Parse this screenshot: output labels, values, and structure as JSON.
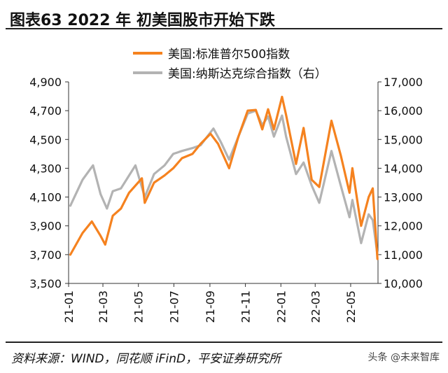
{
  "header": {
    "title": "图表63    2022 年 初美国股市开始下跌"
  },
  "footer": {
    "source": "资料来源：WIND，同花顺 iFinD，平安证券研究所",
    "watermark": "头条 @未来智库"
  },
  "colors": {
    "sp500": "#F5821F",
    "nasdaq": "#B3B3B3",
    "axis": "#333333"
  },
  "chart_data": {
    "type": "line",
    "x_ticks": [
      "21-01",
      "21-03",
      "21-05",
      "21-07",
      "21-09",
      "21-11",
      "22-01",
      "22-03",
      "22-05"
    ],
    "y_left": {
      "ticks": [
        "3,500",
        "3,700",
        "3,900",
        "4,100",
        "4,300",
        "4,500",
        "4,700",
        "4,900"
      ],
      "range": [
        3500,
        4900
      ]
    },
    "y_right": {
      "ticks": [
        "10,000",
        "11,000",
        "12,000",
        "13,000",
        "14,000",
        "15,000",
        "16,000",
        "17,000"
      ],
      "range": [
        10000,
        17000
      ]
    },
    "series": [
      {
        "name": "美国:标准普尔500指数",
        "axis": "left",
        "x": [
          "2021-01-04",
          "2021-01-25",
          "2021-02-10",
          "2021-02-25",
          "2021-03-05",
          "2021-03-18",
          "2021-04-01",
          "2021-04-15",
          "2021-05-07",
          "2021-05-12",
          "2021-05-28",
          "2021-06-15",
          "2021-06-30",
          "2021-07-15",
          "2021-08-02",
          "2021-08-16",
          "2021-09-02",
          "2021-09-15",
          "2021-10-04",
          "2021-10-20",
          "2021-11-05",
          "2021-11-19",
          "2021-11-30",
          "2021-12-10",
          "2021-12-20",
          "2022-01-03",
          "2022-01-10",
          "2022-01-27",
          "2022-02-09",
          "2022-02-23",
          "2022-03-08",
          "2022-03-29",
          "2022-04-14",
          "2022-04-29",
          "2022-05-04",
          "2022-05-19",
          "2022-06-01",
          "2022-06-08",
          "2022-06-16"
        ],
        "y": [
          3700,
          3850,
          3930,
          3830,
          3770,
          3970,
          4020,
          4130,
          4230,
          4060,
          4200,
          4250,
          4300,
          4370,
          4400,
          4470,
          4540,
          4470,
          4300,
          4520,
          4700,
          4705,
          4570,
          4710,
          4570,
          4796,
          4670,
          4330,
          4580,
          4220,
          4170,
          4630,
          4390,
          4130,
          4300,
          3900,
          4100,
          4160,
          3670
        ]
      },
      {
        "name": "美国:纳斯达克综合指数（右）",
        "axis": "right",
        "x": [
          "2021-01-04",
          "2021-01-25",
          "2021-02-12",
          "2021-02-25",
          "2021-03-08",
          "2021-03-18",
          "2021-04-01",
          "2021-04-26",
          "2021-05-12",
          "2021-05-28",
          "2021-06-15",
          "2021-06-30",
          "2021-07-15",
          "2021-08-02",
          "2021-08-16",
          "2021-09-07",
          "2021-09-20",
          "2021-10-04",
          "2021-10-20",
          "2021-11-05",
          "2021-11-19",
          "2021-11-30",
          "2021-12-10",
          "2021-12-20",
          "2022-01-03",
          "2022-01-10",
          "2022-01-27",
          "2022-02-09",
          "2022-02-23",
          "2022-03-08",
          "2022-03-29",
          "2022-04-14",
          "2022-04-29",
          "2022-05-04",
          "2022-05-19",
          "2022-06-01",
          "2022-06-08",
          "2022-06-16"
        ],
        "y": [
          12700,
          13600,
          14100,
          13100,
          12600,
          13200,
          13300,
          14100,
          13000,
          13800,
          14100,
          14500,
          14600,
          14700,
          14800,
          15380,
          14900,
          14300,
          15100,
          15900,
          16000,
          15500,
          15800,
          15100,
          15830,
          15100,
          13800,
          14200,
          13400,
          12800,
          14600,
          13400,
          12300,
          12900,
          11400,
          12400,
          12200,
          11000
        ]
      }
    ]
  }
}
